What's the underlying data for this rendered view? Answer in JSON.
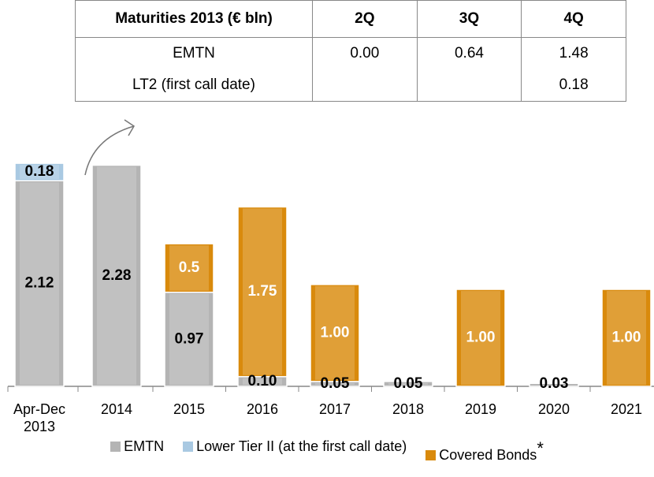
{
  "table": {
    "header": [
      "Maturities 2013 (€ bln)",
      "2Q",
      "3Q",
      "4Q"
    ],
    "rows": [
      [
        "EMTN",
        "0.00",
        "0.64",
        "1.48"
      ],
      [
        "LT2 (first call date)",
        null,
        null,
        "0.18"
      ]
    ]
  },
  "chart_data": {
    "type": "stacked_bar",
    "categories": [
      "Apr-Dec 2013",
      "2014",
      "2015",
      "2016",
      "2017",
      "2018",
      "2019",
      "2020",
      "2021"
    ],
    "series": [
      {
        "name": "EMTN",
        "color": "#b4b4b4",
        "values": [
          2.12,
          2.28,
          0.97,
          0.1,
          0.05,
          0.05,
          null,
          0.03,
          null
        ],
        "value_labels": [
          "2.12",
          "2.28",
          "0.97",
          "0.10",
          "0.05",
          "0.05",
          null,
          "0.03",
          null
        ]
      },
      {
        "name": "Lower Tier II (at the first call date)",
        "color": "#a9c9e2",
        "values": [
          0.18,
          null,
          null,
          null,
          null,
          null,
          null,
          null,
          null
        ],
        "value_labels": [
          "0.18",
          null,
          null,
          null,
          null,
          null,
          null,
          null,
          null
        ]
      },
      {
        "name": "Covered Bonds",
        "color": "#d98a0c",
        "values": [
          null,
          null,
          0.5,
          1.75,
          1.0,
          null,
          1.0,
          null,
          1.0
        ],
        "value_labels": [
          null,
          null,
          "0.5",
          "1.75",
          "1.00",
          null,
          "1.00",
          null,
          "1.00"
        ]
      }
    ],
    "legend_note": "*"
  }
}
